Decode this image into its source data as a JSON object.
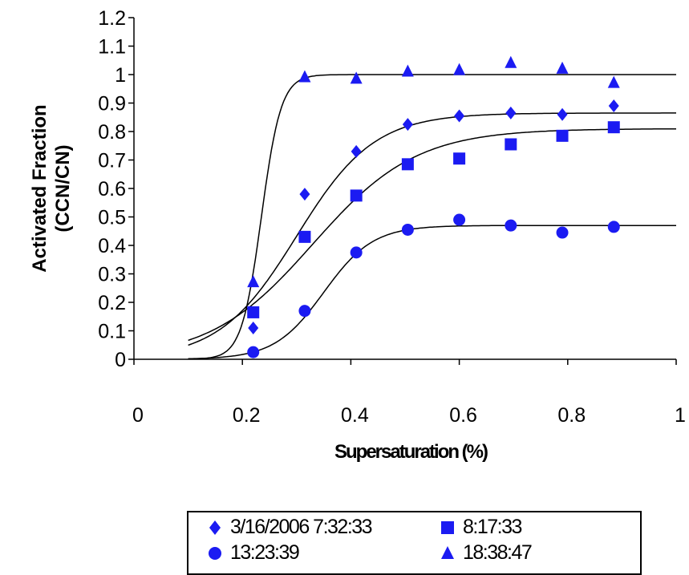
{
  "chart_data": {
    "type": "scatter",
    "xlabel": "Supersaturation (%)",
    "ylabel_line1": "Activated Fraction",
    "ylabel_line2": "(CCN/CN)",
    "xlim": [
      0,
      1
    ],
    "ylim": [
      0,
      1.2
    ],
    "x_ticks": [
      "0",
      "0.2",
      "0.4",
      "0.6",
      "0.8",
      "1"
    ],
    "y_ticks": [
      "0",
      "0.1",
      "0.2",
      "0.3",
      "0.4",
      "0.5",
      "0.6",
      "0.7",
      "0.8",
      "0.9",
      "1",
      "1.1",
      "1.2"
    ],
    "grid": false,
    "legend_position": "bottom",
    "marker_color": "#1b1bf2",
    "series": [
      {
        "name": "3/16/2006 7:32:33",
        "marker": "diamond",
        "points": [
          [
            0.22,
            0.11
          ],
          [
            0.315,
            0.58
          ],
          [
            0.41,
            0.73
          ],
          [
            0.505,
            0.825
          ],
          [
            0.6,
            0.855
          ],
          [
            0.695,
            0.865
          ],
          [
            0.79,
            0.86
          ],
          [
            0.885,
            0.89
          ]
        ],
        "fit": {
          "max": 0.865,
          "s50": 0.3,
          "k": 14
        }
      },
      {
        "name": "8:17:33",
        "marker": "square",
        "points": [
          [
            0.22,
            0.165
          ],
          [
            0.315,
            0.43
          ],
          [
            0.41,
            0.575
          ],
          [
            0.505,
            0.685
          ],
          [
            0.6,
            0.705
          ],
          [
            0.695,
            0.755
          ],
          [
            0.79,
            0.785
          ],
          [
            0.885,
            0.815
          ]
        ],
        "fit": {
          "max": 0.81,
          "s50": 0.33,
          "k": 10.5
        }
      },
      {
        "name": "13:23:39",
        "marker": "circle",
        "points": [
          [
            0.22,
            0.025
          ],
          [
            0.315,
            0.17
          ],
          [
            0.41,
            0.375
          ],
          [
            0.505,
            0.455
          ],
          [
            0.6,
            0.49
          ],
          [
            0.695,
            0.47
          ],
          [
            0.79,
            0.445
          ],
          [
            0.885,
            0.465
          ]
        ],
        "fit": {
          "max": 0.47,
          "s50": 0.35,
          "k": 22
        }
      },
      {
        "name": "18:38:47",
        "marker": "triangle",
        "points": [
          [
            0.22,
            0.27
          ],
          [
            0.315,
            0.99
          ],
          [
            0.41,
            0.985
          ],
          [
            0.505,
            1.01
          ],
          [
            0.6,
            1.015
          ],
          [
            0.695,
            1.04
          ],
          [
            0.79,
            1.02
          ],
          [
            0.885,
            0.97
          ]
        ],
        "fit": {
          "max": 1.0,
          "s50": 0.235,
          "k": 55
        }
      }
    ]
  }
}
